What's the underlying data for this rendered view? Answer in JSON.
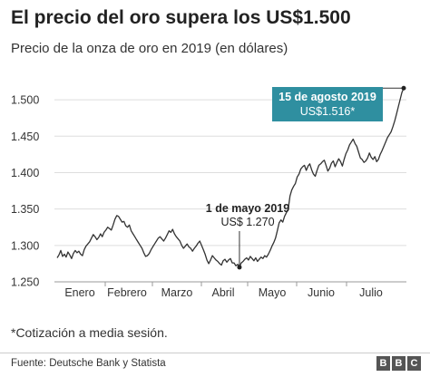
{
  "title": "El precio del oro supera los US$1.500",
  "subtitle": "Precio de la onza de oro en 2019 (en dólares)",
  "footnote": "*Cotización a media sesión.",
  "source": "Fuente: Deutsche Bank y Statista",
  "logo": [
    "B",
    "B",
    "C"
  ],
  "colors": {
    "line": "#333333",
    "grid": "#dddddd",
    "callout": "#2f8fa0"
  },
  "chart_data": {
    "type": "line",
    "title": "El precio del oro supera los US$1.500",
    "subtitle": "Precio de la onza de oro en 2019 (en dólares)",
    "xlabel": "",
    "ylabel": "",
    "ylim": [
      1250,
      1525
    ],
    "grid": true,
    "yticks": [
      1250,
      1300,
      1350,
      1400,
      1450,
      1500
    ],
    "ytick_labels": [
      "1.250",
      "1.300",
      "1.350",
      "1.400",
      "1.450",
      "1.500"
    ],
    "month_labels": [
      "Enero",
      "Febrero",
      "Marzo",
      "Abril",
      "Mayo",
      "Junio",
      "Julio"
    ],
    "series": [
      {
        "values": [
          1283,
          1287,
          1293,
          1285,
          1288,
          1284,
          1291,
          1287,
          1282,
          1289,
          1293,
          1290,
          1292,
          1288,
          1286,
          1294,
          1299,
          1302,
          1305,
          1310,
          1315,
          1312,
          1308,
          1311,
          1316,
          1312,
          1318,
          1321,
          1325,
          1323,
          1321,
          1328,
          1336,
          1341,
          1340,
          1336,
          1332,
          1333,
          1327,
          1325,
          1328,
          1320,
          1316,
          1312,
          1308,
          1304,
          1300,
          1296,
          1290,
          1285,
          1286,
          1289,
          1294,
          1298,
          1302,
          1306,
          1310,
          1312,
          1309,
          1306,
          1310,
          1315,
          1320,
          1318,
          1322,
          1316,
          1312,
          1309,
          1306,
          1300,
          1296,
          1299,
          1302,
          1298,
          1296,
          1292,
          1296,
          1299,
          1303,
          1306,
          1300,
          1294,
          1288,
          1280,
          1275,
          1280,
          1286,
          1283,
          1280,
          1278,
          1275,
          1273,
          1279,
          1281,
          1277,
          1280,
          1282,
          1276,
          1276,
          1272,
          1274,
          1270,
          1276,
          1278,
          1281,
          1283,
          1280,
          1285,
          1282,
          1279,
          1283,
          1278,
          1281,
          1284,
          1282,
          1286,
          1284,
          1288,
          1293,
          1299,
          1304,
          1310,
          1320,
          1331,
          1335,
          1332,
          1340,
          1345,
          1350,
          1368,
          1376,
          1381,
          1385,
          1394,
          1398,
          1405,
          1408,
          1410,
          1403,
          1409,
          1412,
          1404,
          1398,
          1395,
          1403,
          1410,
          1412,
          1415,
          1417,
          1410,
          1402,
          1406,
          1413,
          1416,
          1408,
          1414,
          1419,
          1415,
          1409,
          1418,
          1426,
          1431,
          1438,
          1442,
          1446,
          1440,
          1436,
          1428,
          1420,
          1418,
          1414,
          1416,
          1420,
          1427,
          1421,
          1418,
          1422,
          1415,
          1418,
          1425,
          1430,
          1436,
          1442,
          1448,
          1452,
          1456,
          1463,
          1471,
          1480,
          1490,
          1500,
          1510,
          1516
        ]
      }
    ],
    "annotations": [
      {
        "title": "15 de agosto 2019",
        "value_label": "US$1.516*",
        "value": 1516,
        "style": "callout"
      },
      {
        "title": "1 de mayo 2019",
        "value_label": "US$ 1.270",
        "value": 1270,
        "style": "plain"
      }
    ]
  }
}
